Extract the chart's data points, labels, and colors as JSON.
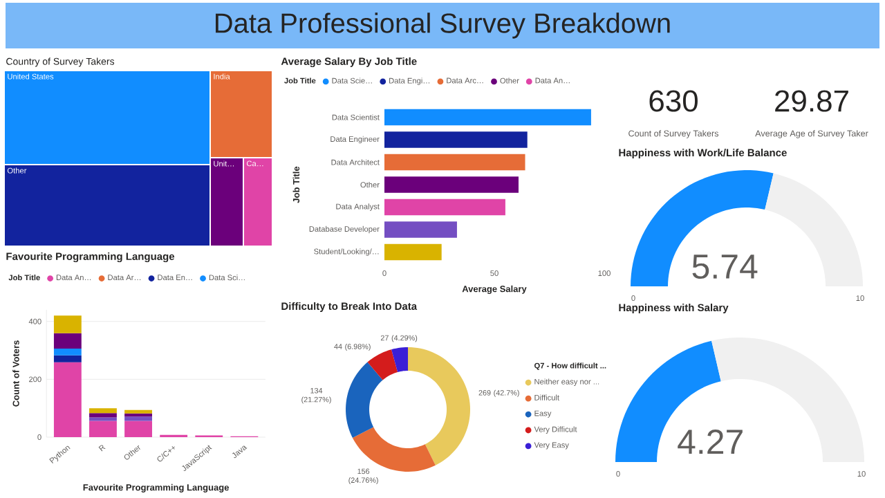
{
  "chart_data": [
    {
      "type": "other",
      "title": "Data Professional Survey Breakdown",
      "color": "#79b8f8"
    },
    {
      "type": "other",
      "title": "Country of Survey Takers",
      "categories": [
        "United States",
        "Other",
        "India",
        "Unit…",
        "Ca…"
      ],
      "colors": [
        "#118dff",
        "#12239e",
        "#e66c37",
        "#6b007b",
        "#e044a7"
      ]
    },
    {
      "type": "bar",
      "orientation": "horizontal",
      "title": "Average Salary By Job Title",
      "legend_title": "Job Title",
      "legend": "top",
      "xlabel": "Average Salary",
      "ylabel": "Job Title",
      "categories": [
        "Data Scientist",
        "Data Engineer",
        "Data Architect",
        "Other",
        "Data Analyst",
        "Database Developer",
        "Student/Looking/…"
      ],
      "series": [
        {
          "name": "Data Scie…",
          "color": "#118dff",
          "values": [
            94,
            null,
            null,
            null,
            null,
            null,
            null
          ]
        },
        {
          "name": "Data Engi…",
          "color": "#12239e",
          "values": [
            null,
            65,
            null,
            null,
            null,
            null,
            null
          ]
        },
        {
          "name": "Data Arc…",
          "color": "#e66c37",
          "values": [
            null,
            null,
            64,
            null,
            null,
            null,
            null
          ]
        },
        {
          "name": "Other",
          "color": "#6b007b",
          "values": [
            null,
            null,
            null,
            61,
            null,
            null,
            null
          ]
        },
        {
          "name": "Data An…",
          "color": "#e044a7",
          "values": [
            null,
            null,
            null,
            null,
            55,
            null,
            null
          ]
        },
        {
          "color": "#744ec2",
          "values": [
            null,
            null,
            null,
            null,
            null,
            33,
            null
          ]
        },
        {
          "color": "#d9b300",
          "values": [
            null,
            null,
            null,
            null,
            null,
            null,
            26
          ]
        }
      ],
      "xlim": [
        0,
        100
      ],
      "xticks": [
        0,
        50,
        100
      ]
    },
    {
      "type": "other",
      "annotations": [
        "630",
        "Count of Survey Takers",
        "29.87",
        "Average Age of Survey Taker"
      ]
    },
    {
      "type": "donut",
      "title": "Happiness with Work/Life Balance",
      "categories": [
        null,
        null
      ],
      "values": [
        5.74,
        4.26
      ],
      "value_labels": [
        "5.74",
        null
      ],
      "colors": [
        "#118dff",
        "#f0f0f0"
      ],
      "annotations": [
        "0",
        "10"
      ]
    },
    {
      "type": "bar",
      "stacked": true,
      "title": "Favourite Programming Language",
      "legend_title": "Job Title",
      "legend": "top",
      "xlabel": "Favourite Programming Language",
      "ylabel": "Count of Voters",
      "categories": [
        "Python",
        "R",
        "Other",
        "C/C++",
        "JavaScript",
        "Java"
      ],
      "series": [
        {
          "name": "Data An…",
          "color": "#e044a7",
          "values": [
            259,
            56,
            56,
            8,
            6,
            3
          ]
        },
        {
          "name": "Data Ar…",
          "color": "#e66c37",
          "values": [
            null,
            null,
            null,
            null,
            null,
            null
          ]
        },
        {
          "name": "Data En…",
          "color": "#12239e",
          "values": [
            24,
            null,
            null,
            null,
            null,
            null
          ]
        },
        {
          "name": "Data Sci…",
          "color": "#118dff",
          "values": [
            23,
            null,
            null,
            null,
            null,
            null
          ]
        },
        {
          "color": "#744ec2",
          "values": [
            null,
            12,
            15,
            null,
            null,
            null
          ]
        },
        {
          "color": "#6b007b",
          "values": [
            53,
            15,
            11,
            null,
            null,
            null
          ]
        },
        {
          "color": "#d9b300",
          "values": [
            61,
            17,
            12,
            null,
            null,
            null
          ]
        }
      ],
      "ylim": [
        0,
        440
      ],
      "yticks": [
        0,
        200,
        400
      ],
      "grid": "y"
    },
    {
      "type": "donut",
      "title": "Difficulty to Break Into Data",
      "legend_title": "Q7 - How difficult ...",
      "legend": "right",
      "categories": [
        "Neither easy nor ...",
        "Difficult",
        "Easy",
        "Very Difficult",
        "Very Easy"
      ],
      "values": [
        269,
        156,
        134,
        44,
        27
      ],
      "value_labels": [
        "269 (42.7%)",
        "156 (24.76%)",
        "134 (21.27%)",
        "44 (6.98%)",
        "27 (4.29%)"
      ],
      "colors": [
        "#e8c95c",
        "#e66c37",
        "#1a64bd",
        "#d41c1c",
        "#3a1fd6"
      ]
    },
    {
      "type": "donut",
      "title": "Happiness with Salary",
      "categories": [
        null,
        null
      ],
      "values": [
        4.27,
        5.73
      ],
      "value_labels": [
        "4.27",
        null
      ],
      "colors": [
        "#118dff",
        "#f0f0f0"
      ],
      "annotations": [
        "0",
        "10"
      ]
    }
  ]
}
